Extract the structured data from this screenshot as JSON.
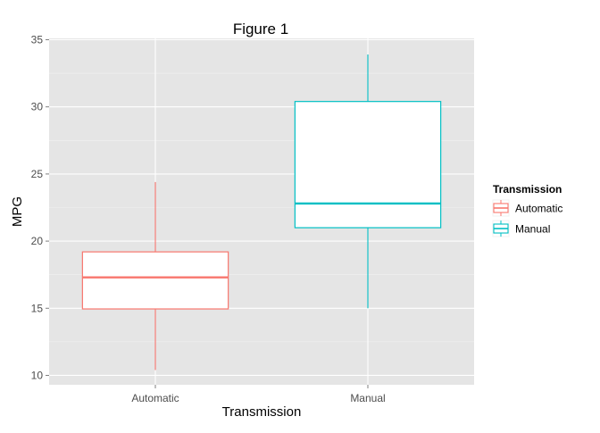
{
  "chart_data": {
    "type": "boxplot",
    "title": "Figure 1",
    "xlabel": "Transmission",
    "ylabel": "MPG",
    "ylim": [
      9.3,
      35.1
    ],
    "yticks": [
      10,
      15,
      20,
      25,
      30,
      35
    ],
    "categories": [
      "Automatic",
      "Manual"
    ],
    "grid": true,
    "legend": {
      "title": "Transmission",
      "placement": "right",
      "items": [
        "Automatic",
        "Manual"
      ]
    },
    "series": [
      {
        "name": "Automatic",
        "color": "#F8766D",
        "min": 10.4,
        "q1": 14.95,
        "median": 17.3,
        "q3": 19.2,
        "max": 24.4
      },
      {
        "name": "Manual",
        "color": "#00BFC4",
        "min": 15.0,
        "q1": 21.0,
        "median": 22.8,
        "q3": 30.4,
        "max": 33.9
      }
    ],
    "colors": {
      "panel_background": "#E5E5E5",
      "grid_major": "#FFFFFF",
      "grid_minor": "#F2F2F2",
      "axis_text": "#4D4D4D",
      "axis_title": "#000000"
    }
  }
}
